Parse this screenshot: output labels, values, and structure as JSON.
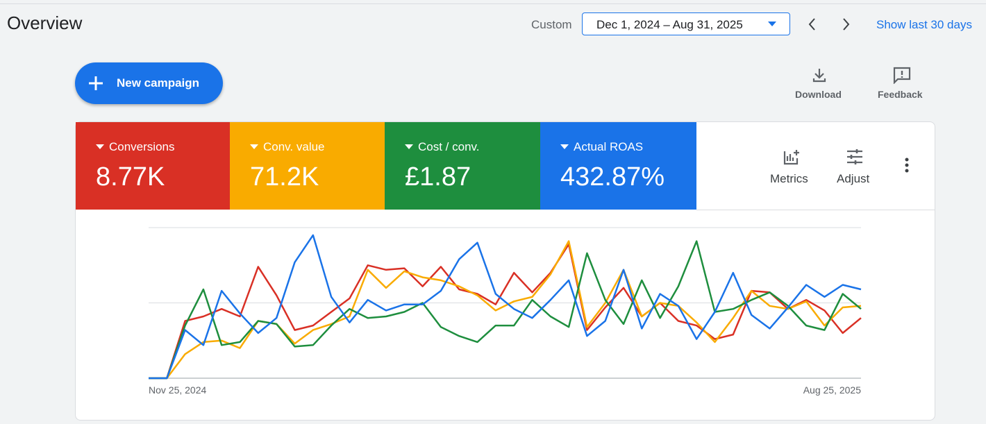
{
  "header": {
    "title": "Overview",
    "range_label": "Custom",
    "date_range": "Dec 1, 2024 – Aug 31, 2025",
    "show_last": "Show last 30 days"
  },
  "toolbar": {
    "new_campaign": "New campaign",
    "download": "Download",
    "feedback": "Feedback"
  },
  "card_actions": {
    "metrics": "Metrics",
    "adjust": "Adjust"
  },
  "chart_data": {
    "type": "line",
    "categories": [
      "Nov 25, 2024",
      null,
      null,
      null,
      null,
      null,
      null,
      null,
      null,
      null,
      null,
      null,
      null,
      null,
      null,
      null,
      null,
      null,
      null,
      null,
      null,
      null,
      null,
      null,
      null,
      null,
      null,
      null,
      null,
      null,
      null,
      null,
      null,
      null,
      null,
      null,
      null,
      null,
      null,
      "Aug 25, 2025"
    ],
    "series": [
      {
        "name": "Conversions",
        "total": "8.77K",
        "color": "#d93025",
        "values": [
          0,
          0,
          38,
          41,
          46,
          41,
          74,
          55,
          32,
          35,
          44,
          53,
          75,
          72,
          73,
          61,
          74,
          59,
          56,
          49,
          70,
          57,
          70,
          89,
          32,
          47,
          60,
          41,
          50,
          38,
          35,
          26,
          29,
          58,
          57,
          46,
          52,
          45,
          30,
          40
        ]
      },
      {
        "name": "Conv. value",
        "total": "71.2K",
        "color": "#f9ab00",
        "values": [
          0,
          0,
          16,
          24,
          25,
          20,
          38,
          36,
          23,
          32,
          36,
          41,
          72,
          60,
          71,
          67,
          65,
          61,
          55,
          45,
          51,
          54,
          69,
          91,
          34,
          50,
          72,
          41,
          50,
          48,
          37,
          24,
          40,
          58,
          48,
          46,
          51,
          35,
          47,
          48
        ]
      },
      {
        "name": "Cost / conv.",
        "total": "£1.87",
        "color": "#1e8e3e",
        "values": [
          0,
          0,
          35,
          59,
          22,
          24,
          38,
          36,
          21,
          22,
          35,
          46,
          40,
          41,
          44,
          50,
          34,
          28,
          24,
          35,
          35,
          52,
          41,
          34,
          83,
          52,
          36,
          65,
          40,
          61,
          91,
          44,
          46,
          52,
          57,
          48,
          35,
          32,
          56,
          46
        ]
      },
      {
        "name": "Actual ROAS",
        "total": "432.87%",
        "color": "#1a73e8",
        "values": [
          0,
          0,
          32,
          22,
          58,
          43,
          30,
          40,
          77,
          95,
          54,
          37,
          52,
          45,
          49,
          49,
          58,
          79,
          90,
          56,
          46,
          40,
          52,
          65,
          28,
          38,
          72,
          33,
          56,
          48,
          26,
          44,
          70,
          42,
          33,
          47,
          62,
          54,
          62,
          59
        ]
      }
    ],
    "ylim": [
      0,
      100
    ],
    "yticks": [
      0,
      50,
      100
    ],
    "grid": true
  }
}
